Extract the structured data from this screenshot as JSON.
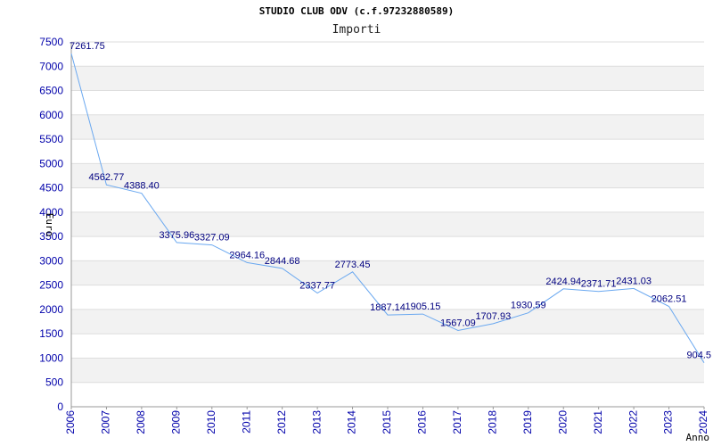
{
  "chart_data": {
    "type": "line",
    "title": "STUDIO CLUB ODV (c.f.97232880589)",
    "subtitle": "Importi",
    "xlabel": "Anno",
    "ylabel": "Euro",
    "x": [
      "2006",
      "2007",
      "2008",
      "2009",
      "2010",
      "2011",
      "2012",
      "2013",
      "2014",
      "2015",
      "2016",
      "2017",
      "2018",
      "2019",
      "2020",
      "2021",
      "2022",
      "2023",
      "2024"
    ],
    "values": [
      7261.75,
      4562.77,
      4388.4,
      3375.96,
      3327.09,
      2964.16,
      2844.68,
      2337.77,
      2773.45,
      1887.14,
      1905.15,
      1567.09,
      1707.93,
      1930.59,
      2424.94,
      2371.71,
      2431.03,
      2062.51,
      904.5
    ],
    "labels": [
      "7261.75",
      "4562.77",
      "4388.40",
      "3375.96",
      "3327.09",
      "2964.16",
      "2844.68",
      "2337.77",
      "2773.45",
      "1887.14",
      "1905.15",
      "1567.09",
      "1707.93",
      "1930.59",
      "2424.94",
      "2371.71",
      "2431.03",
      "2062.51",
      "904.5"
    ],
    "ylim": [
      0,
      7500
    ],
    "yticks": [
      0,
      500,
      1000,
      1500,
      2000,
      2500,
      3000,
      3500,
      4000,
      4500,
      5000,
      5500,
      6000,
      6500,
      7000,
      7500
    ],
    "grid": true,
    "colors": {
      "line": "#6aa8f0",
      "band": "#f2f2f2",
      "tick": "#0000aa",
      "label": "#000080"
    }
  }
}
